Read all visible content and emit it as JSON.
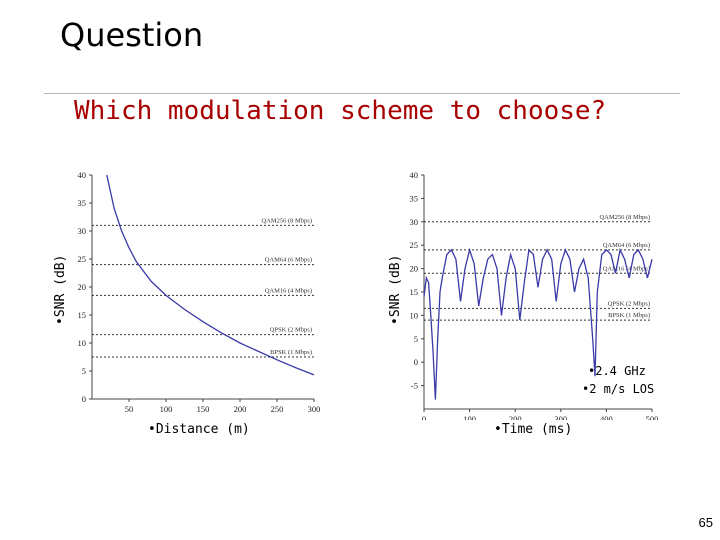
{
  "slide": {
    "title": "Question",
    "subtitle": "Which modulation scheme to choose?",
    "page_number": "65",
    "left_ylabel": "•SNR (dB)",
    "right_ylabel": "•SNR (dB)",
    "left_xlabel": "•Distance (m)",
    "right_xlabel": "•Time (ms)",
    "note_line1": "•2.4 GHz",
    "note_line2": "•2 m/s LOS"
  },
  "chart_data": [
    {
      "type": "line",
      "title": "",
      "xlabel": "•Distance (m)",
      "ylabel": "•SNR (dB)",
      "xlim": [
        0,
        300
      ],
      "ylim": [
        0,
        40
      ],
      "xticks": [
        50,
        100,
        150,
        200,
        250,
        300
      ],
      "yticks": [
        0,
        5,
        10,
        15,
        20,
        25,
        30,
        35,
        40
      ],
      "grid": false,
      "series": [
        {
          "color": "#3a3aa8",
          "x": [
            20,
            30,
            40,
            50,
            60,
            80,
            100,
            125,
            150,
            175,
            200,
            225,
            250,
            275,
            300
          ],
          "y": [
            40,
            34,
            30,
            27,
            24.5,
            21,
            18.5,
            16,
            13.8,
            11.8,
            10,
            8.5,
            7,
            5.6,
            4.3
          ]
        }
      ],
      "thresholds": [
        {
          "label": "QAM256 (8 Mbps)",
          "y": 31
        },
        {
          "label": "QAM64 (6 Mbps)",
          "y": 24
        },
        {
          "label": "QAM16 (4 Mbps)",
          "y": 18.5
        },
        {
          "label": "QPSK (2 Mbps)",
          "y": 11.5
        },
        {
          "label": "BPSK (1 Mbps)",
          "y": 7.5
        }
      ]
    },
    {
      "type": "line",
      "title": "",
      "xlabel": "•Time (ms)",
      "ylabel": "•SNR (dB)",
      "xlim": [
        0,
        500
      ],
      "ylim": [
        -10,
        40
      ],
      "xticks": [
        0,
        100,
        200,
        300,
        400,
        500
      ],
      "yticks": [
        -5,
        0,
        5,
        10,
        15,
        20,
        25,
        30,
        35,
        40
      ],
      "grid": false,
      "series": [
        {
          "color": "#3a3aa8",
          "x": [
            0,
            5,
            10,
            15,
            20,
            25,
            30,
            35,
            40,
            50,
            60,
            70,
            80,
            90,
            100,
            110,
            120,
            130,
            140,
            150,
            160,
            170,
            180,
            190,
            200,
            210,
            220,
            230,
            240,
            250,
            260,
            270,
            280,
            290,
            300,
            310,
            320,
            330,
            340,
            350,
            360,
            370,
            375,
            380,
            390,
            400,
            410,
            420,
            430,
            440,
            450,
            460,
            470,
            480,
            490,
            500
          ],
          "y": [
            14,
            18,
            17,
            10,
            2,
            -8,
            5,
            15,
            18,
            23,
            24,
            22,
            13,
            20,
            24,
            21,
            12,
            18,
            22,
            23,
            20,
            10,
            18,
            23,
            20,
            9,
            17,
            24,
            23,
            16,
            22,
            24,
            22,
            13,
            21,
            24,
            22,
            15,
            20,
            22,
            18,
            5,
            -3,
            15,
            23,
            24,
            23,
            19,
            24,
            22,
            18,
            23,
            24,
            22,
            18,
            22
          ]
        }
      ],
      "thresholds": [
        {
          "label": "QAM256 (8 Mbps)",
          "y": 30
        },
        {
          "label": "QAM64 (6 Mbps)",
          "y": 24
        },
        {
          "label": "QAM16 (4 Mbps)",
          "y": 19
        },
        {
          "label": "QPSK (2 Mbps)",
          "y": 11.5
        },
        {
          "label": "BPSK (1 Mbps)",
          "y": 9
        }
      ]
    }
  ]
}
